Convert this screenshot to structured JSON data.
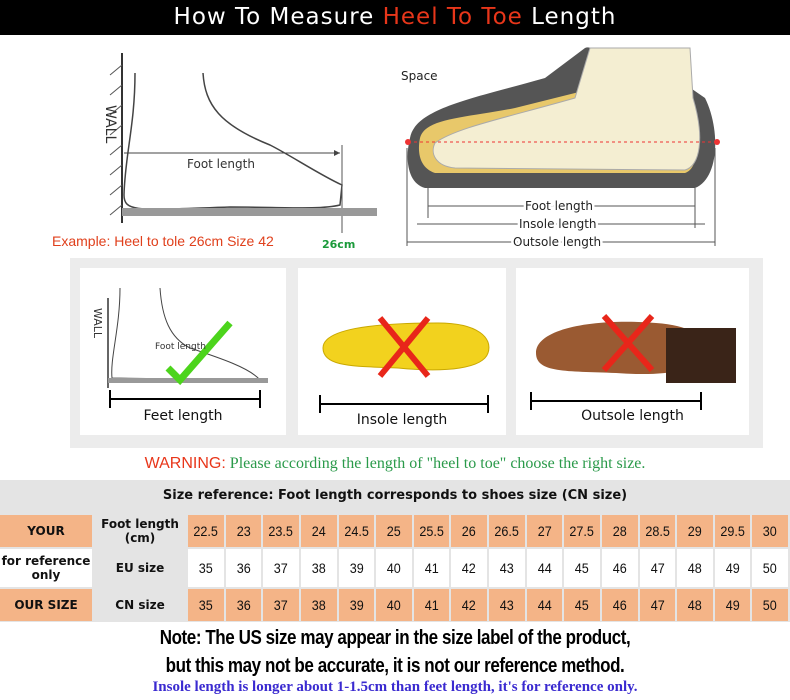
{
  "header": {
    "title_prefix": "How To Measure ",
    "title_highlight": "Heel To Toe",
    "title_suffix": " Length"
  },
  "diagram_left": {
    "wall": "WALL",
    "foot_length": "Foot length",
    "example": "Example: Heel to tole 26cm Size 42",
    "mark": "26cm"
  },
  "diagram_right": {
    "space": "Space",
    "foot_length": "Foot length",
    "insole_length": "Insole length",
    "outsole_length": "Outsole length"
  },
  "cards": [
    {
      "label": "Feet length",
      "wall": "WALL",
      "foot": "Foot length",
      "mark": "correct"
    },
    {
      "label": "Insole length",
      "mark": "wrong"
    },
    {
      "label": "Outsole length",
      "mark": "wrong"
    }
  ],
  "warning": {
    "label": "WARNING:",
    "text": " Please according the length of \"heel to toe\" choose the right size."
  },
  "size_table": {
    "title": "Size reference: Foot length corresponds to shoes size (CN size)",
    "rows": [
      {
        "group": "YOUR",
        "label": "Foot length (cm)",
        "values": [
          "22.5",
          "23",
          "23.5",
          "24",
          "24.5",
          "25",
          "25.5",
          "26",
          "26.5",
          "27",
          "27.5",
          "28",
          "28.5",
          "29",
          "29.5",
          "30"
        ]
      },
      {
        "group": "for reference only",
        "label": "EU size",
        "values": [
          "35",
          "36",
          "37",
          "38",
          "39",
          "40",
          "41",
          "42",
          "43",
          "44",
          "45",
          "46",
          "47",
          "48",
          "49",
          "50"
        ]
      },
      {
        "group": "OUR SIZE",
        "label": "CN size",
        "values": [
          "35",
          "36",
          "37",
          "38",
          "39",
          "40",
          "41",
          "42",
          "43",
          "44",
          "45",
          "46",
          "47",
          "48",
          "49",
          "50"
        ]
      }
    ]
  },
  "note": {
    "line1": "Note: The US size may appear in the size label of the product,",
    "line2": "but this may not be accurate, it is not our reference method."
  },
  "insole_note": "Insole length is longer about 1-1.5cm than feet length, it's for reference only.",
  "colors": {
    "accent_red": "#e8361a",
    "green": "#2a9a4a",
    "table_orange": "#f4b487",
    "blue_note": "#3a2ad0"
  }
}
